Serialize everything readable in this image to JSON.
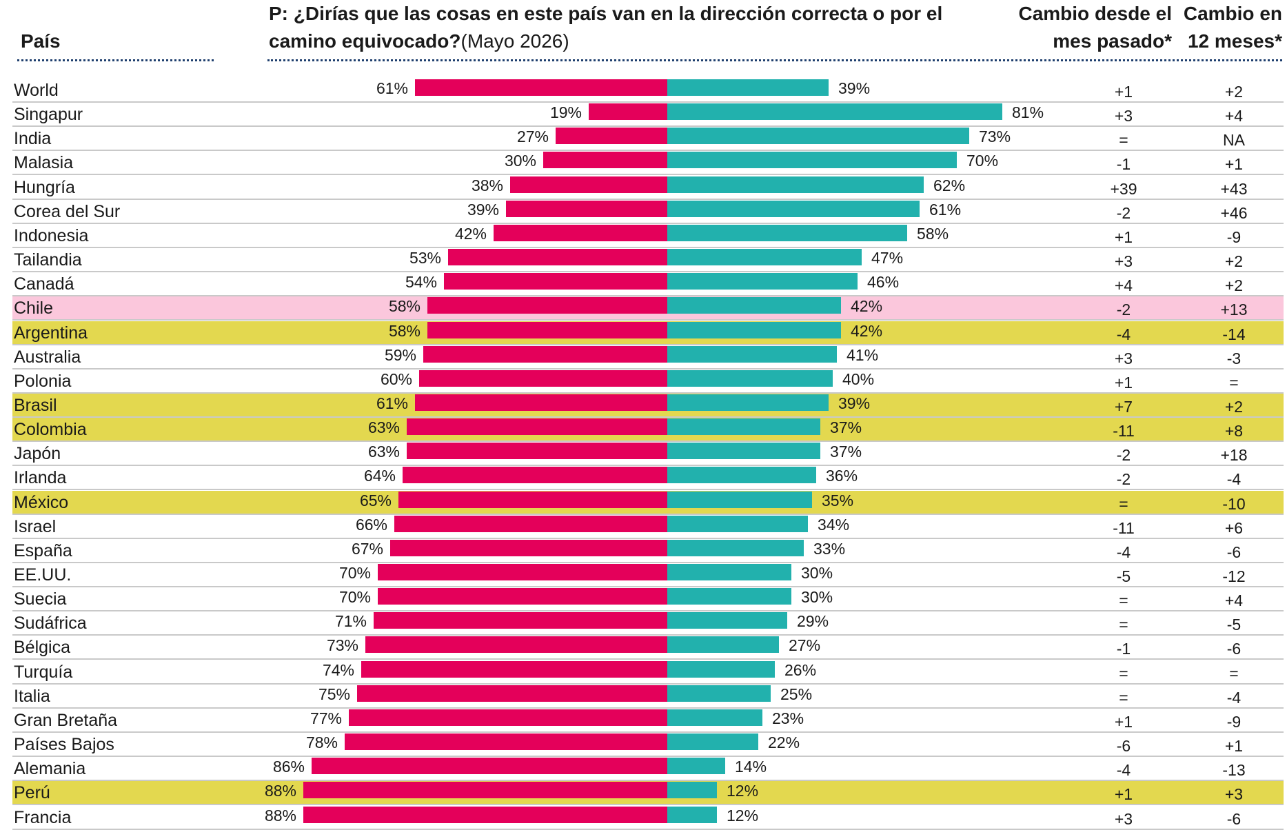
{
  "headers": {
    "country": "País",
    "question": "P: ¿Dirías que las cosas en este país van en la dirección correcta o por el camino equivocado?",
    "date": "(Mayo 2026)",
    "change_month": "Cambio desde el mes pasado*",
    "change_year": "Cambio en 12 meses*"
  },
  "colors": {
    "wrong_track": "#e4005a",
    "right_direction": "#22b1ad",
    "highlight_yellow": "#e3d84f",
    "highlight_pink": "#fbc7dc"
  },
  "chart_data": {
    "type": "bar",
    "orientation": "horizontal-diverging",
    "categories": [
      "World",
      "Singapur",
      "India",
      "Malasia",
      "Hungría",
      "Corea del Sur",
      "Indonesia",
      "Tailandia",
      "Canadá",
      "Chile",
      "Argentina",
      "Australia",
      "Polonia",
      "Brasil",
      "Colombia",
      "Japón",
      "Irlanda",
      "México",
      "Israel",
      "España",
      "EE.UU.",
      "Suecia",
      "Sudáfrica",
      "Bélgica",
      "Turquía",
      "Italia",
      "Gran Bretaña",
      "Países Bajos",
      "Alemania",
      "Perú",
      "Francia"
    ],
    "series": [
      {
        "values": [
          61,
          19,
          27,
          30,
          38,
          39,
          42,
          53,
          54,
          58,
          58,
          59,
          60,
          61,
          63,
          63,
          64,
          65,
          66,
          67,
          70,
          70,
          71,
          73,
          74,
          75,
          77,
          78,
          86,
          88,
          88
        ]
      },
      {
        "values": [
          39,
          81,
          73,
          70,
          62,
          61,
          58,
          47,
          46,
          42,
          42,
          41,
          40,
          39,
          37,
          37,
          36,
          35,
          34,
          33,
          30,
          30,
          29,
          27,
          26,
          25,
          23,
          22,
          14,
          12,
          12
        ]
      }
    ],
    "change_month": [
      "+1",
      "+3",
      "=",
      "-1",
      "+39",
      "-2",
      "+1",
      "+3",
      "+4",
      "-2",
      "-4",
      "+3",
      "+1",
      "+7",
      "-11",
      "-2",
      "-2",
      "=",
      "-11",
      "-4",
      "-5",
      "=",
      "=",
      "-1",
      "=",
      "=",
      "+1",
      "-6",
      "-4",
      "+1",
      "+3"
    ],
    "change_12_months": [
      "+2",
      "+4",
      "NA",
      "+1",
      "+43",
      "+46",
      "-9",
      "+2",
      "+2",
      "+13",
      "-14",
      "-3",
      "=",
      "+2",
      "+8",
      "+18",
      "-4",
      "-10",
      "+6",
      "-6",
      "-12",
      "+4",
      "-5",
      "-6",
      "=",
      "-4",
      "-9",
      "+1",
      "-13",
      "+3",
      "-6"
    ],
    "highlight": [
      "",
      "",
      "",
      "",
      "",
      "",
      "",
      "",
      "",
      "pink",
      "yellow",
      "",
      "",
      "yellow",
      "yellow",
      "",
      "",
      "yellow",
      "",
      "",
      "",
      "",
      "",
      "",
      "",
      "",
      "",
      "",
      "",
      "yellow",
      ""
    ]
  }
}
